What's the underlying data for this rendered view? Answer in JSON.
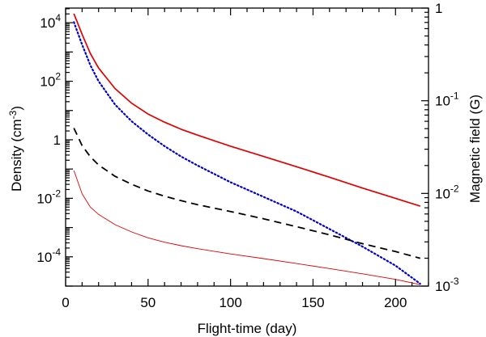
{
  "chart_data": {
    "type": "line",
    "title": "",
    "xlabel": "Flight-time (day)",
    "ylabel_left": {
      "text": "Density (cm",
      "sup": "-3",
      "suffix": ")"
    },
    "ylabel_right": "Magnetic field (G)",
    "xlim": [
      0,
      220
    ],
    "ylim_left_log10": [
      -5,
      4.5
    ],
    "ylim_right_log10": [
      -3,
      0
    ],
    "y_scale": "log",
    "x_ticks": [
      {
        "value": 0,
        "label": "0"
      },
      {
        "value": 50,
        "label": "50"
      },
      {
        "value": 100,
        "label": "100"
      },
      {
        "value": 150,
        "label": "150"
      },
      {
        "value": 200,
        "label": "200"
      }
    ],
    "y_left_ticks": [
      {
        "exp": 4,
        "base": "10",
        "sup": "4"
      },
      {
        "exp": 2,
        "base": "10",
        "sup": "2"
      },
      {
        "exp": 0,
        "base": "1",
        "sup": ""
      },
      {
        "exp": -2,
        "base": "10",
        "sup": "-2"
      },
      {
        "exp": -4,
        "base": "10",
        "sup": "-4"
      }
    ],
    "y_right_ticks": [
      {
        "exp": 0,
        "base": "1",
        "sup": ""
      },
      {
        "exp": -1,
        "base": "10",
        "sup": "-1"
      },
      {
        "exp": -2,
        "base": "10",
        "sup": "-2"
      },
      {
        "exp": -3,
        "base": "10",
        "sup": "-3"
      }
    ],
    "grid": false,
    "series": [
      {
        "axis": "left",
        "color": "#e00000",
        "style": "solid",
        "width": 1.7,
        "points": [
          [
            5,
            4.31
          ],
          [
            10,
            3.6
          ],
          [
            15,
            2.95
          ],
          [
            20,
            2.45
          ],
          [
            30,
            1.75
          ],
          [
            40,
            1.25
          ],
          [
            50,
            0.88
          ],
          [
            60,
            0.6
          ],
          [
            70,
            0.36
          ],
          [
            80,
            0.16
          ],
          [
            100,
            -0.22
          ],
          [
            120,
            -0.57
          ],
          [
            140,
            -0.92
          ],
          [
            160,
            -1.28
          ],
          [
            180,
            -1.65
          ],
          [
            200,
            -2.0
          ],
          [
            215,
            -2.27
          ]
        ]
      },
      {
        "axis": "left",
        "color": "#0000cc",
        "style": "dotted",
        "width": 2.2,
        "points": [
          [
            5,
            4.02
          ],
          [
            10,
            3.25
          ],
          [
            15,
            2.55
          ],
          [
            20,
            2.0
          ],
          [
            30,
            1.2
          ],
          [
            40,
            0.63
          ],
          [
            50,
            0.18
          ],
          [
            60,
            -0.22
          ],
          [
            70,
            -0.57
          ],
          [
            80,
            -0.88
          ],
          [
            100,
            -1.45
          ],
          [
            120,
            -1.95
          ],
          [
            140,
            -2.45
          ],
          [
            160,
            -3.05
          ],
          [
            180,
            -3.65
          ],
          [
            200,
            -4.3
          ],
          [
            215,
            -4.92
          ]
        ]
      },
      {
        "axis": "left",
        "color": "#000000",
        "style": "dashed",
        "width": 1.8,
        "points": [
          [
            5,
            0.4
          ],
          [
            10,
            -0.2
          ],
          [
            15,
            -0.58
          ],
          [
            20,
            -0.86
          ],
          [
            30,
            -1.25
          ],
          [
            40,
            -1.52
          ],
          [
            50,
            -1.75
          ],
          [
            60,
            -1.93
          ],
          [
            70,
            -2.08
          ],
          [
            80,
            -2.22
          ],
          [
            100,
            -2.45
          ],
          [
            120,
            -2.7
          ],
          [
            140,
            -2.97
          ],
          [
            160,
            -3.25
          ],
          [
            180,
            -3.55
          ],
          [
            200,
            -3.82
          ],
          [
            215,
            -4.05
          ]
        ]
      },
      {
        "axis": "left",
        "color": "#e00000",
        "style": "solid",
        "width": 0.9,
        "points": [
          [
            5,
            -1.05
          ],
          [
            10,
            -1.85
          ],
          [
            15,
            -2.3
          ],
          [
            20,
            -2.55
          ],
          [
            30,
            -2.9
          ],
          [
            40,
            -3.15
          ],
          [
            50,
            -3.35
          ],
          [
            60,
            -3.5
          ],
          [
            70,
            -3.62
          ],
          [
            80,
            -3.72
          ],
          [
            100,
            -3.9
          ],
          [
            120,
            -4.06
          ],
          [
            140,
            -4.23
          ],
          [
            160,
            -4.4
          ],
          [
            180,
            -4.58
          ],
          [
            200,
            -4.77
          ],
          [
            215,
            -4.95
          ]
        ]
      }
    ]
  }
}
